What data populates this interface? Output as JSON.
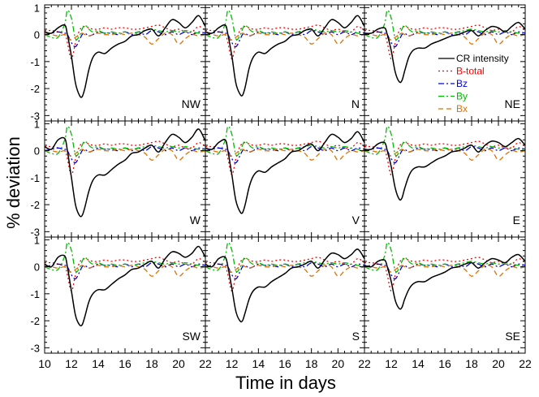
{
  "chart_data": {
    "type": "line",
    "layout": "3x3 grid of panels sharing axes",
    "xlabel": "Time in days",
    "ylabel": "% deviation",
    "xlim": [
      10,
      22
    ],
    "ylim": [
      -3.2,
      1.1
    ],
    "x_ticks": [
      "10",
      "12",
      "14",
      "16",
      "18",
      "20",
      "22"
    ],
    "y_ticks": [
      "1",
      "0",
      "-1",
      "-2",
      "-3"
    ],
    "y_tick_values": [
      1,
      0,
      -1,
      -2,
      -3
    ],
    "legend": {
      "placement": "top-right panel, right side",
      "entries": [
        {
          "key": "cr",
          "label": "CR intensity",
          "color": "#000000",
          "dash": "solid",
          "text_color": "#000000"
        },
        {
          "key": "bt",
          "label": "B-total",
          "color": "#ff0000",
          "dash": "dotted",
          "text_color": "#ff0000"
        },
        {
          "key": "bz",
          "label": "Bz",
          "color": "#0000dd",
          "dash": "dashdot",
          "text_color": "#0000dd"
        },
        {
          "key": "by",
          "label": "By",
          "color": "#00bb00",
          "dash": "dashdot",
          "text_color": "#00bb00"
        },
        {
          "key": "bx",
          "label": "Bx",
          "color": "#e07000",
          "dash": "dashed",
          "text_color": "#e07000"
        }
      ]
    },
    "x": [
      10,
      10.5,
      11,
      11.5,
      11.7,
      12,
      12.3,
      12.6,
      12.8,
      13,
      13.3,
      13.6,
      14,
      14.5,
      15,
      15.5,
      16,
      16.5,
      17,
      17.5,
      18,
      18.5,
      19,
      19.5,
      20,
      20.5,
      21,
      21.5,
      22
    ],
    "panels": [
      {
        "name": "NW",
        "series": {
          "cr": [
            0.1,
            0.05,
            0.25,
            0.35,
            0.0,
            -0.8,
            -1.8,
            -2.25,
            -2.3,
            -2.0,
            -1.3,
            -0.85,
            -0.65,
            -0.7,
            -0.5,
            -0.35,
            -0.25,
            -0.05,
            0.0,
            0.15,
            0.2,
            -0.05,
            0.25,
            0.55,
            0.45,
            0.25,
            0.45,
            0.7,
            0.3
          ]
        }
      },
      {
        "name": "N",
        "series": {
          "cr": [
            0.1,
            0.05,
            0.25,
            0.35,
            0.0,
            -0.8,
            -1.8,
            -2.2,
            -2.25,
            -1.95,
            -1.25,
            -0.85,
            -0.65,
            -0.7,
            -0.5,
            -0.35,
            -0.25,
            -0.05,
            0.0,
            0.15,
            0.2,
            -0.05,
            0.25,
            0.55,
            0.45,
            0.25,
            0.45,
            0.7,
            0.3
          ]
        }
      },
      {
        "name": "NE",
        "series": {
          "cr": [
            0.05,
            0.05,
            0.2,
            0.25,
            0.0,
            -0.6,
            -1.4,
            -1.75,
            -1.7,
            -1.35,
            -0.85,
            -0.6,
            -0.5,
            -0.5,
            -0.35,
            -0.25,
            -0.15,
            -0.05,
            0.0,
            0.1,
            0.15,
            -0.05,
            0.15,
            0.3,
            0.25,
            0.1,
            0.3,
            0.45,
            0.2
          ]
        }
      },
      {
        "name": "W",
        "series": {
          "cr": [
            0.15,
            0.05,
            0.4,
            0.45,
            0.0,
            -1.0,
            -2.0,
            -2.4,
            -2.4,
            -2.1,
            -1.5,
            -1.1,
            -0.9,
            -0.9,
            -0.7,
            -0.5,
            -0.35,
            -0.1,
            -0.05,
            0.1,
            0.2,
            -0.05,
            0.3,
            0.6,
            0.5,
            0.3,
            0.5,
            0.8,
            0.35
          ]
        }
      },
      {
        "name": "V",
        "series": {
          "cr": [
            0.1,
            0.05,
            0.3,
            0.4,
            0.0,
            -0.9,
            -1.85,
            -2.25,
            -2.3,
            -2.0,
            -1.35,
            -0.95,
            -0.75,
            -0.8,
            -0.6,
            -0.45,
            -0.3,
            -0.05,
            0.0,
            0.15,
            0.25,
            0.0,
            0.3,
            0.6,
            0.5,
            0.3,
            0.45,
            0.7,
            0.3
          ]
        }
      },
      {
        "name": "E",
        "series": {
          "cr": [
            0.05,
            0.05,
            0.25,
            0.3,
            0.0,
            -0.6,
            -1.4,
            -1.8,
            -1.75,
            -1.4,
            -0.95,
            -0.7,
            -0.6,
            -0.6,
            -0.45,
            -0.3,
            -0.2,
            -0.05,
            0.0,
            0.1,
            0.2,
            -0.05,
            0.2,
            0.35,
            0.3,
            0.15,
            0.3,
            0.45,
            0.2
          ]
        }
      },
      {
        "name": "SW",
        "series": {
          "cr": [
            0.1,
            0.0,
            0.35,
            0.4,
            0.0,
            -0.9,
            -1.8,
            -2.15,
            -2.15,
            -1.85,
            -1.3,
            -1.0,
            -0.85,
            -0.85,
            -0.65,
            -0.45,
            -0.3,
            -0.1,
            -0.05,
            0.1,
            0.2,
            -0.05,
            0.3,
            0.55,
            0.5,
            0.35,
            0.5,
            0.75,
            0.35
          ]
        }
      },
      {
        "name": "S",
        "series": {
          "cr": [
            0.1,
            0.0,
            0.3,
            0.35,
            0.0,
            -0.8,
            -1.65,
            -2.0,
            -2.0,
            -1.7,
            -1.2,
            -0.9,
            -0.75,
            -0.75,
            -0.55,
            -0.4,
            -0.25,
            -0.05,
            0.0,
            0.1,
            0.2,
            -0.05,
            0.25,
            0.5,
            0.45,
            0.3,
            0.45,
            0.65,
            0.3
          ]
        }
      },
      {
        "name": "SE",
        "series": {
          "cr": [
            0.05,
            0.0,
            0.2,
            0.25,
            0.0,
            -0.55,
            -1.25,
            -1.55,
            -1.5,
            -1.2,
            -0.85,
            -0.65,
            -0.55,
            -0.55,
            -0.4,
            -0.3,
            -0.2,
            -0.05,
            0.0,
            0.1,
            0.15,
            -0.05,
            0.15,
            0.3,
            0.25,
            0.15,
            0.35,
            0.45,
            0.2
          ]
        }
      }
    ],
    "common_series": {
      "bt": [
        0.15,
        0.15,
        0.1,
        0.0,
        -0.3,
        -0.9,
        -0.3,
        0.15,
        0.25,
        0.3,
        0.25,
        0.2,
        0.2,
        0.25,
        0.2,
        0.25,
        0.25,
        0.2,
        0.2,
        0.25,
        0.3,
        0.35,
        0.25,
        0.15,
        0.2,
        0.1,
        0.1,
        0.3,
        0.15
      ],
      "bz": [
        0.0,
        0.05,
        0.1,
        0.05,
        0.0,
        -0.3,
        -0.45,
        -0.2,
        0.0,
        0.05,
        -0.05,
        0.0,
        0.1,
        0.05,
        0.05,
        0.0,
        0.1,
        0.0,
        0.1,
        0.0,
        0.15,
        0.1,
        0.0,
        0.1,
        0.0,
        0.1,
        0.0,
        0.1,
        0.05
      ],
      "by": [
        0.0,
        -0.1,
        -0.1,
        0.4,
        0.9,
        0.6,
        -0.15,
        -0.05,
        0.2,
        0.35,
        0.2,
        0.1,
        0.15,
        0.05,
        0.1,
        0.05,
        0.1,
        0.05,
        0.1,
        0.15,
        0.2,
        0.15,
        0.1,
        0.15,
        0.1,
        0.15,
        0.1,
        0.05,
        0.0
      ],
      "bx": [
        0.0,
        0.0,
        -0.05,
        0.0,
        -0.1,
        -0.2,
        -0.1,
        0.0,
        0.05,
        0.0,
        -0.05,
        0.0,
        0.05,
        0.0,
        0.0,
        0.05,
        0.0,
        0.05,
        0.0,
        -0.1,
        -0.35,
        -0.15,
        0.05,
        0.0,
        -0.35,
        -0.15,
        0.0,
        -0.05,
        0.0
      ]
    }
  }
}
